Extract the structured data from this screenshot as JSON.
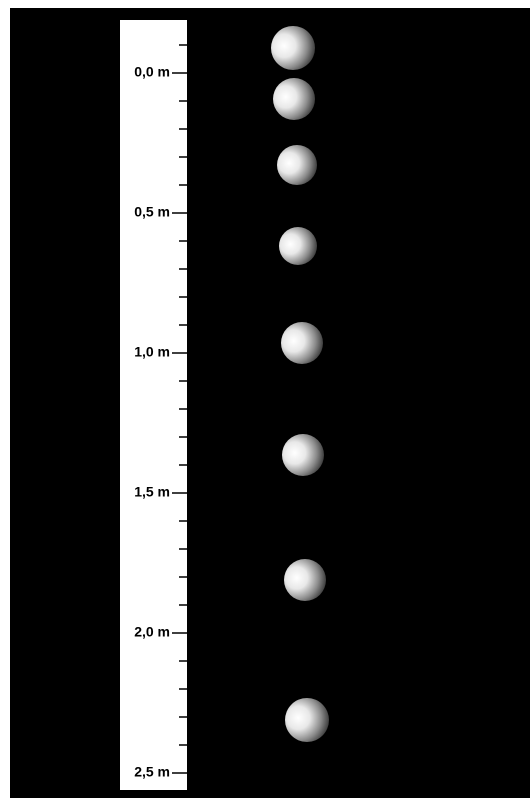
{
  "scale": {
    "labels": [
      "0,0 m",
      "0,5 m",
      "1,0 m",
      "1,5 m",
      "2,0 m",
      "2,5 m"
    ]
  }
}
